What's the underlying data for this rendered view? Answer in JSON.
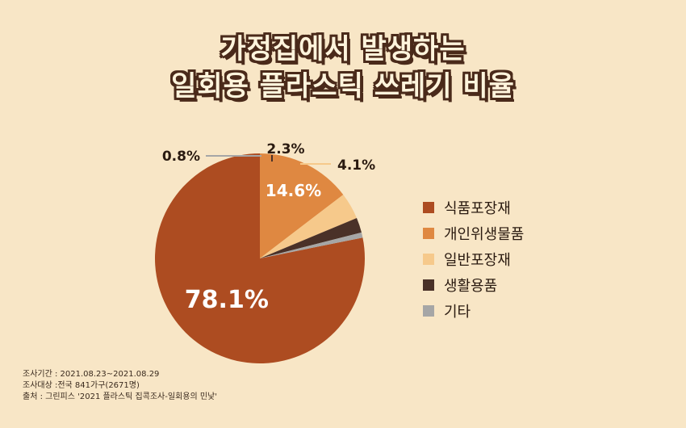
{
  "title_lines": [
    "가정집에서 발생하는",
    "일회용 플라스틱 쓰레기 비율"
  ],
  "chart_data": {
    "type": "pie",
    "title": "가정집에서 발생하는 일회용 플라스틱 쓰레기 비율",
    "categories": [
      "식품포장재",
      "개인위생물품",
      "일반포장재",
      "생활용품",
      "기타"
    ],
    "values": [
      78.1,
      14.6,
      4.1,
      2.3,
      0.8
    ],
    "labels": [
      "78.1%",
      "14.6%",
      "4.1%",
      "2.3%",
      "0.8%"
    ],
    "colors": [
      "#ad4c21",
      "#df8841",
      "#f6c98b",
      "#4a3128",
      "#a6a6a6"
    ],
    "legend_position": "right"
  },
  "notes": [
    "조사기간 : 2021.08.23~2021.08.29",
    "조사대상 :전국 841가구(2671명)",
    "출처 : 그린피스 '2021 플라스틱 집콕조사-일회용의 민낯'"
  ]
}
